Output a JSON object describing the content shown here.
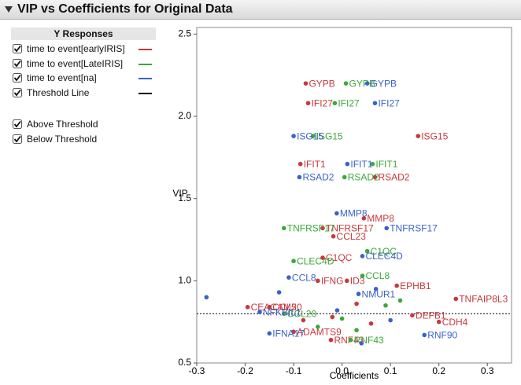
{
  "header": {
    "title": "VIP vs Coefficients for Original Data"
  },
  "panel": {
    "legend_title": "Y Responses",
    "options": [
      "Above Threshold",
      "Below Threshold"
    ]
  },
  "chart_data": {
    "type": "scatter",
    "xlabel": "Coefficients",
    "ylabel": "VIP",
    "xlim": [
      -0.3,
      0.35
    ],
    "ylim": [
      0.5,
      2.54
    ],
    "xticks": [
      -0.3,
      -0.2,
      -0.1,
      {
        "value": 0,
        "label": "0.0"
      },
      0.1,
      0.2,
      0.3
    ],
    "yticks": [
      {
        "value": 0.5,
        "label": "0.5"
      },
      {
        "value": 1,
        "label": "1.0"
      },
      {
        "value": 1.5,
        "label": "1.5"
      },
      {
        "value": 2,
        "label": "2.0"
      },
      {
        "value": 2.5,
        "label": "2.5"
      }
    ],
    "threshold": {
      "name": "Threshold Line",
      "value": 0.8,
      "color": "#000000"
    },
    "series": [
      {
        "name": "time to event[earlyIRIS]",
        "color": "#c8383d",
        "x": [
          -0.075,
          -0.07,
          0.157,
          -0.086,
          0.068,
          0.045,
          -0.04,
          -0.018,
          -0.04,
          -0.05,
          0.01,
          0.113,
          0.235,
          -0.195,
          0.2,
          -0.1,
          -0.023,
          -0.15,
          0.145,
          -0.02,
          0.06,
          -0.08,
          0.03
        ],
        "values": [
          2.2,
          2.08,
          1.88,
          1.71,
          1.63,
          1.38,
          1.32,
          1.27,
          1.14,
          1.0,
          1.0,
          0.97,
          0.89,
          0.84,
          0.75,
          0.69,
          0.64,
          0.84,
          0.79,
          0.78,
          0.74,
          0.76,
          0.86
        ],
        "labels": [
          "GYPB",
          "IFI27",
          "ISG15",
          "IFIT1",
          "RSAD2",
          "MMP8",
          "TNFRSF17",
          "CCL23",
          "C1QC",
          "IFNG",
          "ID3",
          "EPHB1",
          "TNFAIP8L3",
          "CEACAM5",
          "CDH4",
          "ADAMTS9",
          "RNF43",
          "CCL20",
          "DEFB1",
          null,
          null,
          null,
          null
        ]
      },
      {
        "name": "time to event[LateIRIS]",
        "color": "#3ca83a",
        "x": [
          0.008,
          -0.015,
          -0.06,
          0.063,
          0.005,
          -0.12,
          0.052,
          -0.1,
          0.042,
          0.018,
          -0.12,
          0.0,
          0.09,
          -0.05,
          0.03,
          0.12
        ],
        "values": [
          2.2,
          2.08,
          1.88,
          1.71,
          1.63,
          1.32,
          1.18,
          1.12,
          1.03,
          0.64,
          0.8,
          0.77,
          0.85,
          0.72,
          0.7,
          0.88
        ],
        "labels": [
          "GYPB",
          "IFI27",
          "ISG15",
          "IFIT1",
          "RSAD2",
          "TNFRSF17",
          "C1QC",
          "CLEC4D",
          "CCL8",
          "RNF43",
          "CCL20",
          null,
          null,
          null,
          null,
          null
        ]
      },
      {
        "name": "time to event[na]",
        "color": "#3a62c8",
        "x": [
          0.052,
          0.068,
          -0.1,
          0.011,
          -0.088,
          -0.011,
          0.092,
          0.042,
          -0.11,
          0.034,
          -0.17,
          -0.15,
          0.17,
          -0.28,
          -0.13,
          0.04,
          -0.01,
          0.1,
          0.07
        ],
        "values": [
          2.2,
          2.08,
          1.88,
          1.71,
          1.63,
          1.41,
          1.32,
          1.15,
          1.02,
          0.92,
          0.81,
          0.68,
          0.67,
          0.9,
          0.93,
          0.62,
          0.82,
          0.76,
          0.95
        ],
        "labels": [
          "GYPB",
          "IFI27",
          "ISG15",
          "IFIT1",
          "RSAD2",
          "MMP8",
          "TNFRSF17",
          "CLEC4D",
          "CCL8",
          "NMUR1",
          "NFKBIL1",
          "IFNA17",
          "RNF90",
          null,
          null,
          null,
          null,
          null,
          null
        ]
      }
    ]
  }
}
